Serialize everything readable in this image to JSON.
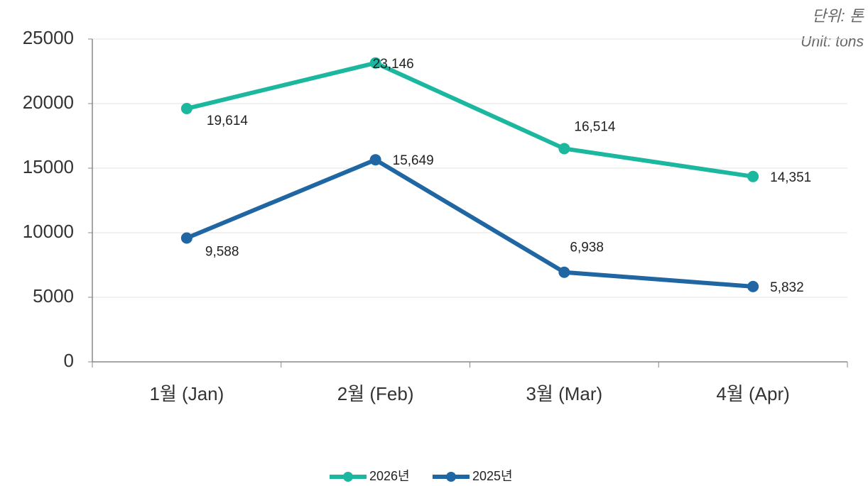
{
  "chart_data": {
    "type": "line",
    "annotations": [
      "단위: 톤",
      "Unit: tons"
    ],
    "categories": [
      "1월 (Jan)",
      "2월 (Feb)",
      "3월 (Mar)",
      "4월 (Apr)"
    ],
    "series": [
      {
        "name": "2026년",
        "color": "#1bb89f",
        "values": [
          19614,
          23146,
          16514,
          14351
        ],
        "value_labels": [
          "19,614",
          "23,146",
          "16,514",
          "14,351"
        ]
      },
      {
        "name": "2025년",
        "color": "#1f66a3",
        "values": [
          9588,
          15649,
          6938,
          5832
        ],
        "value_labels": [
          "9,588",
          "15,649",
          "6,938",
          "5,832"
        ]
      }
    ],
    "ylim": [
      0,
      25000
    ],
    "yticks": [
      0,
      5000,
      10000,
      15000,
      20000,
      25000
    ],
    "grid": true,
    "legend": "bottom"
  }
}
